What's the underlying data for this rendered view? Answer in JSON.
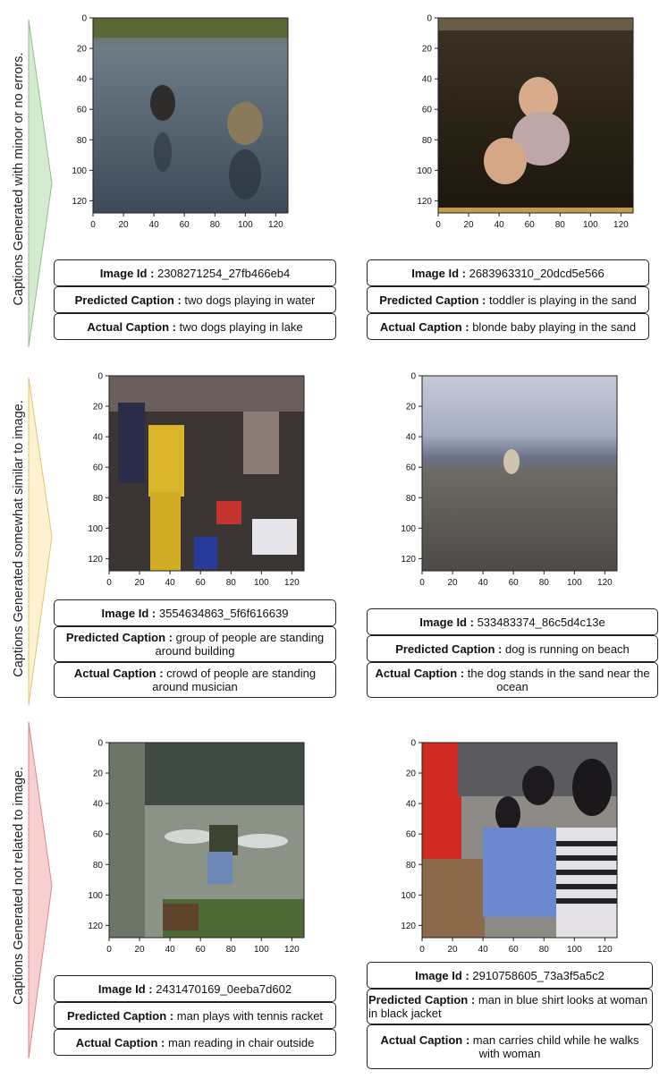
{
  "categories": [
    {
      "label": "Captions Generated with minor or no errors.",
      "color": "#d4ebd0",
      "stroke": "#8fc28a"
    },
    {
      "label": "Captions Generated somewhat similar to image.",
      "color": "#fdf1cf",
      "stroke": "#e2c46f"
    },
    {
      "label": "Captions Generated not related to image.",
      "color": "#f8cfcf",
      "stroke": "#d88a8a"
    }
  ],
  "axes": {
    "x_ticks": [
      "0",
      "20",
      "40",
      "60",
      "80",
      "100",
      "120"
    ],
    "y_ticks": [
      "0",
      "20",
      "40",
      "60",
      "80",
      "100",
      "120"
    ]
  },
  "field_labels": {
    "image_id": "Image Id :",
    "predicted": "Predicted Caption :",
    "actual": "Actual Caption :"
  },
  "examples": [
    {
      "image_id": "2308271254_27fb466eb4",
      "predicted": "two dogs playing in water",
      "actual": "two dogs playing in lake"
    },
    {
      "image_id": "2683963310_20dcd5e566",
      "predicted": "toddler is playing in the sand",
      "actual": "blonde baby playing in the sand"
    },
    {
      "image_id": "3554634863_5f6f616639",
      "predicted": "group of people are standing around building",
      "actual": "crowd of people are standing around musician"
    },
    {
      "image_id": "533483374_86c5d4c13e",
      "predicted": "dog is running on beach",
      "actual": "the dog stands in the sand near the ocean"
    },
    {
      "image_id": "2431470169_0eeba7d602",
      "predicted": "man plays with tennis racket",
      "actual": "man reading in chair outside"
    },
    {
      "image_id": "2910758605_73a3f5a5c2",
      "predicted": "man in blue shirt looks at woman in black jacket",
      "actual": "man carries child while he walks with woman"
    }
  ]
}
